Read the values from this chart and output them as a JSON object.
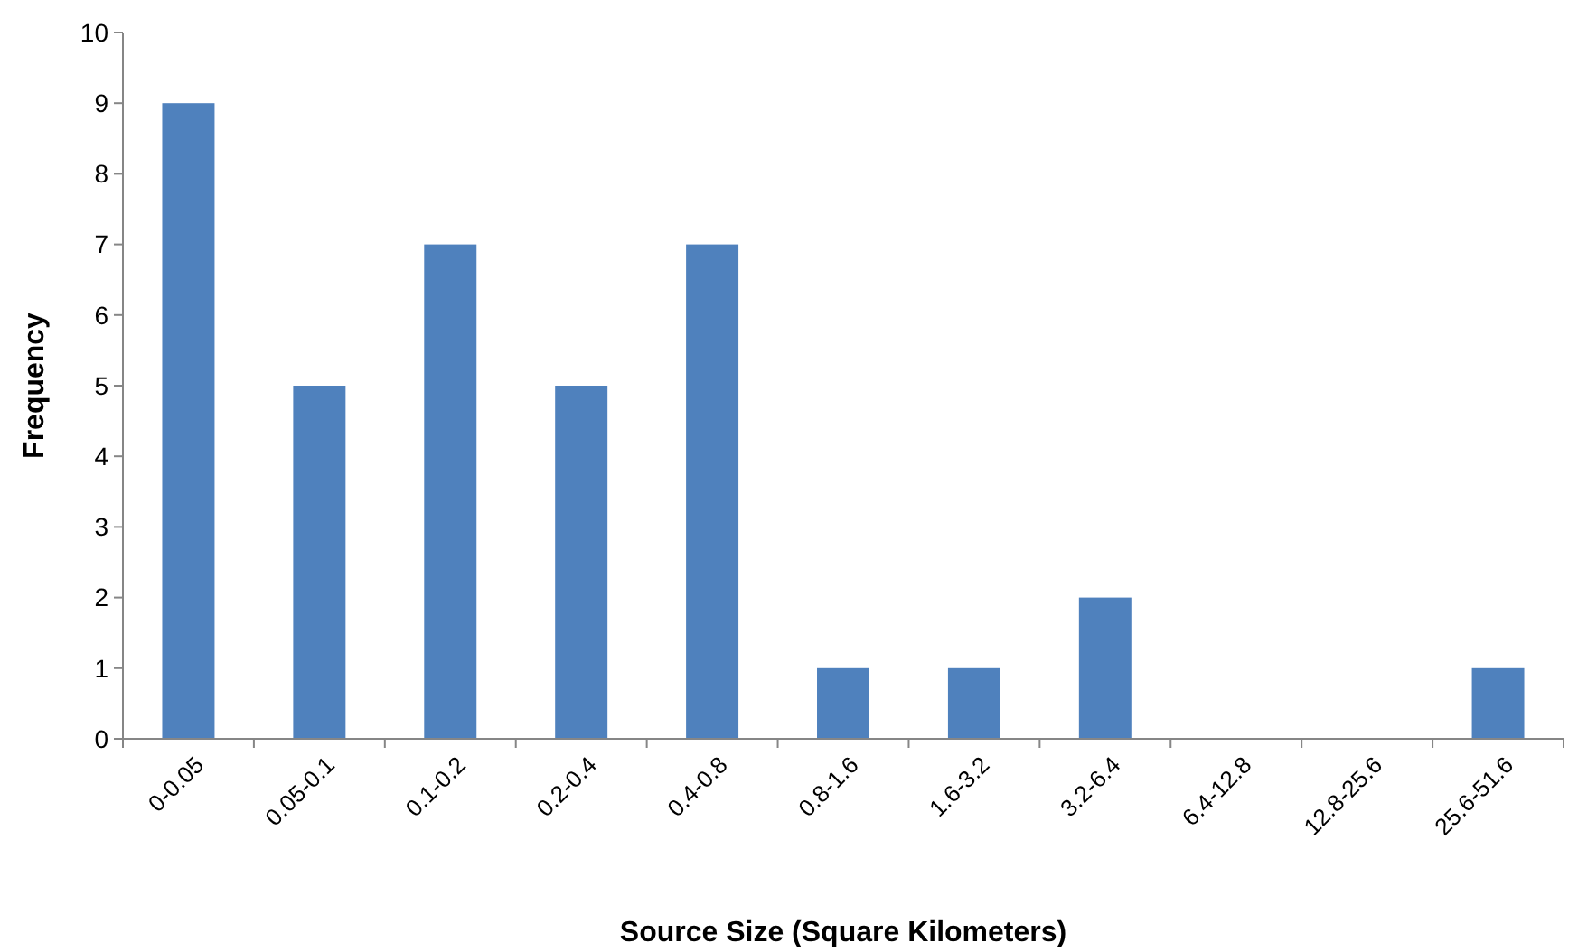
{
  "chart_data": {
    "type": "bar",
    "xlabel": "Source Size (Square Kilometers)",
    "ylabel": "Frequency",
    "categories": [
      "0-0.05",
      "0.05-0.1",
      "0.1-0.2",
      "0.2-0.4",
      "0.4-0.8",
      "0.8-1.6",
      "1.6-3.2",
      "3.2-6.4",
      "6.4-12.8",
      "12.8-25.6",
      "25.6-51.6"
    ],
    "values": [
      9,
      5,
      7,
      5,
      7,
      1,
      1,
      2,
      0,
      0,
      1
    ],
    "color": "#4f81bd",
    "ylim": [
      0,
      10
    ],
    "yticks": [
      0,
      1,
      2,
      3,
      4,
      5,
      6,
      7,
      8,
      9,
      10
    ],
    "grid": false
  }
}
